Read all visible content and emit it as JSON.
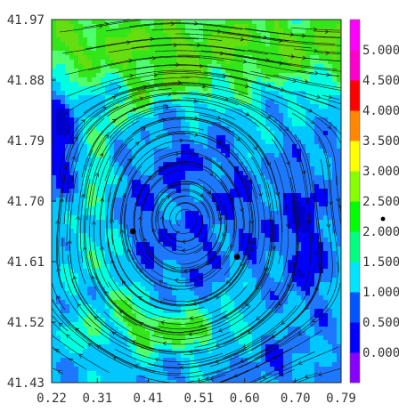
{
  "chart_data": {
    "type": "heatmap",
    "title": "",
    "xlabel": "",
    "ylabel": "",
    "xlim": [
      0.22,
      0.79
    ],
    "ylim": [
      41.43,
      41.97
    ],
    "x_ticks": [
      "0.22",
      "0.31",
      "0.41",
      "0.51",
      "0.60",
      "0.70",
      "0.79"
    ],
    "y_ticks": [
      "41.97",
      "41.88",
      "41.79",
      "41.70",
      "41.61",
      "41.52",
      "41.43"
    ],
    "grid": false,
    "overlay": "streamlines",
    "colorbar": {
      "placement": "right",
      "labels": [
        "0.000",
        "0.500",
        "1.000",
        "1.500",
        "2.000",
        "2.500",
        "3.000",
        "3.500",
        "4.000",
        "4.500",
        "5.000"
      ],
      "colors": [
        "#8800ff",
        "#0000ff",
        "#0055ff",
        "#00e5ff",
        "#00ff80",
        "#00ff00",
        "#88ff00",
        "#ffff00",
        "#ff8800",
        "#ff0000",
        "#ff00cc",
        "#ff00ff"
      ]
    },
    "markers": [
      {
        "x": 0.38,
        "y": 41.655
      },
      {
        "x": 0.585,
        "y": 41.617
      }
    ]
  }
}
